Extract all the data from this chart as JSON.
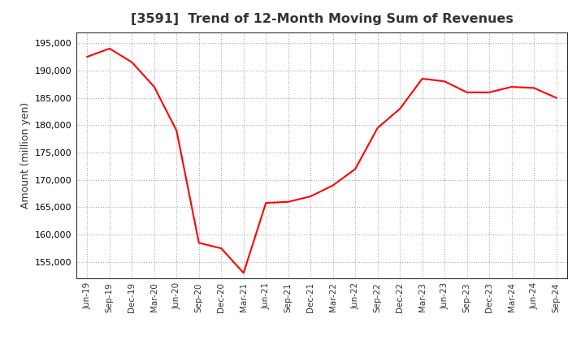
{
  "title": "[3591]  Trend of 12-Month Moving Sum of Revenues",
  "ylabel": "Amount (million yen)",
  "line_color": "#FF0000",
  "line_width": 1.5,
  "background_color": "#FFFFFF",
  "grid_color": "#AAAAAA",
  "ylim": [
    152000,
    197000
  ],
  "yticks": [
    155000,
    160000,
    165000,
    170000,
    175000,
    180000,
    185000,
    190000,
    195000
  ],
  "x_labels": [
    "Jun-19",
    "Sep-19",
    "Dec-19",
    "Mar-20",
    "Jun-20",
    "Sep-20",
    "Dec-20",
    "Mar-21",
    "Jun-21",
    "Sep-21",
    "Dec-21",
    "Mar-22",
    "Jun-22",
    "Sep-22",
    "Dec-22",
    "Mar-23",
    "Jun-23",
    "Sep-23",
    "Dec-23",
    "Mar-24",
    "Jun-24",
    "Sep-24"
  ],
  "values": [
    192500,
    194000,
    191500,
    187000,
    179000,
    158500,
    157500,
    153000,
    165800,
    166000,
    167000,
    169000,
    172000,
    179500,
    183000,
    188500,
    188000,
    186000,
    186000,
    187000,
    186800,
    185000
  ]
}
